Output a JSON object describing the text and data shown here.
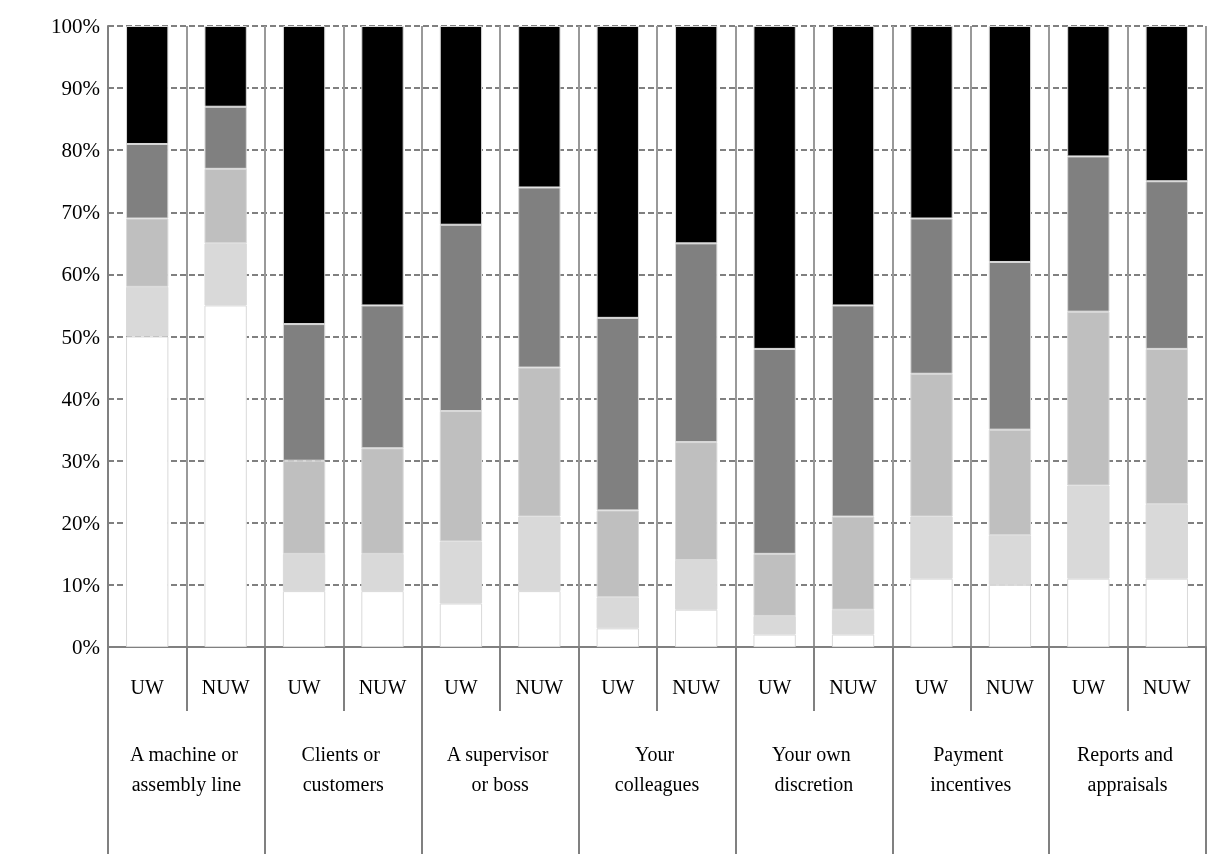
{
  "chart_data": {
    "type": "bar",
    "stacked": true,
    "grid": true,
    "categories": [
      "UW",
      "NUW",
      "UW",
      "NUW",
      "UW",
      "NUW",
      "UW",
      "NUW",
      "UW",
      "NUW",
      "UW",
      "NUW",
      "UW",
      "NUW"
    ],
    "annotations": [
      "A machine or assembly line",
      "Clients or customers",
      "A supervisor or boss",
      "Your colleagues",
      "Your own discretion",
      "Payment incentives",
      "Reports and appraisals"
    ],
    "series": [
      {
        "color": "#ffffff",
        "values": [
          50,
          55,
          9,
          9,
          7,
          9,
          3,
          6,
          2,
          2,
          11,
          10,
          11,
          11
        ]
      },
      {
        "color": "#d9d9d9",
        "values": [
          8,
          10,
          6,
          6,
          10,
          12,
          5,
          8,
          3,
          4,
          10,
          8,
          15,
          12
        ]
      },
      {
        "color": "#bfbfbf",
        "values": [
          11,
          12,
          15,
          17,
          21,
          24,
          14,
          19,
          10,
          15,
          23,
          17,
          28,
          25
        ]
      },
      {
        "color": "#808080",
        "values": [
          12,
          10,
          22,
          23,
          30,
          29,
          31,
          32,
          33,
          34,
          25,
          27,
          25,
          27
        ]
      },
      {
        "color": "#000000",
        "values": [
          19,
          13,
          48,
          45,
          32,
          26,
          47,
          35,
          52,
          45,
          31,
          38,
          21,
          25
        ]
      }
    ],
    "ylim": [
      0,
      100
    ],
    "yticks": [
      {
        "value": 0,
        "label": "0%"
      },
      {
        "value": 10,
        "label": "10%"
      },
      {
        "value": 20,
        "label": "20%"
      },
      {
        "value": 30,
        "label": "30%"
      },
      {
        "value": 40,
        "label": "40%"
      },
      {
        "value": 50,
        "label": "50%"
      },
      {
        "value": 60,
        "label": "60%"
      },
      {
        "value": 70,
        "label": "70%"
      },
      {
        "value": 80,
        "label": "80%"
      },
      {
        "value": 90,
        "label": "90%"
      },
      {
        "value": 100,
        "label": "100%"
      }
    ]
  }
}
